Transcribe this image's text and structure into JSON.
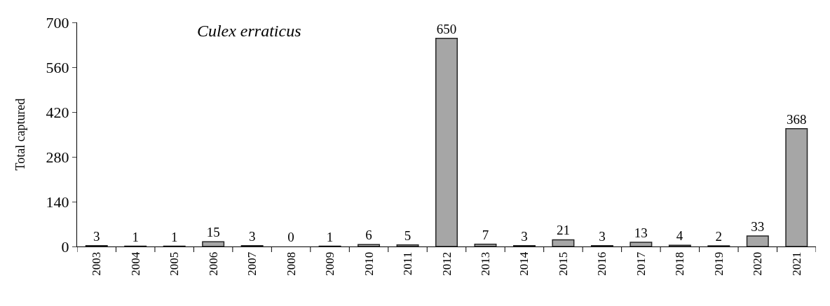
{
  "chart_data": {
    "type": "bar",
    "title": "Culex erraticus",
    "ylabel": "Total captured",
    "categories": [
      "2003",
      "2004",
      "2005",
      "2006",
      "2007",
      "2008",
      "2009",
      "2010",
      "2011",
      "2012",
      "2013",
      "2014",
      "2015",
      "2016",
      "2017",
      "2018",
      "2019",
      "2020",
      "2021"
    ],
    "values": [
      3,
      1,
      1,
      15,
      3,
      0,
      1,
      6,
      5,
      650,
      7,
      3,
      21,
      3,
      13,
      4,
      2,
      33,
      368
    ],
    "color": "#a6a6a6",
    "ylim": [
      0,
      700
    ],
    "yticks": [
      0,
      140,
      280,
      420,
      560,
      700
    ],
    "legend": false,
    "data_labels": true
  }
}
